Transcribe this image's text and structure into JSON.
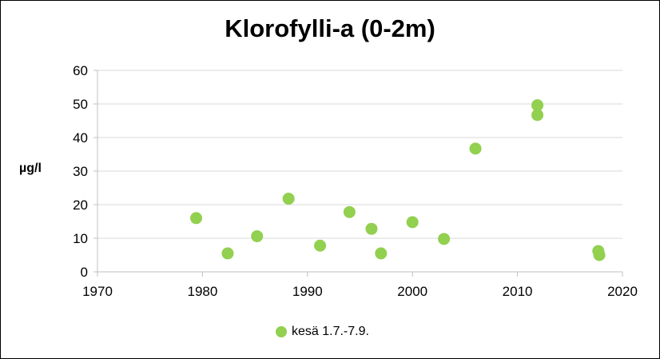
{
  "chart_data": {
    "type": "scatter",
    "title": "Klorofylli-a (0-2m)",
    "xlabel": "",
    "ylabel": "µg/l",
    "xlim": [
      1970,
      2020
    ],
    "ylim": [
      0,
      60
    ],
    "xticks": [
      1970,
      1980,
      1990,
      2000,
      2010,
      2020
    ],
    "yticks": [
      0,
      10,
      20,
      30,
      40,
      50,
      60
    ],
    "grid": true,
    "legend_position": "bottom",
    "marker_color": "#92D050",
    "series": [
      {
        "name": "kesä 1.7.-7.9.",
        "x": [
          1979.4,
          1982.4,
          1985.2,
          1988.2,
          1991.2,
          1994.0,
          1996.1,
          1997.0,
          2000.0,
          2003.0,
          2006.0,
          2011.9,
          2011.9,
          2017.7,
          2017.8
        ],
        "y": [
          16,
          5.5,
          10.6,
          21.8,
          7.8,
          17.8,
          12.8,
          5.5,
          14.8,
          9.8,
          36.7,
          49.6,
          46.7,
          6.2,
          5.0
        ]
      }
    ]
  }
}
